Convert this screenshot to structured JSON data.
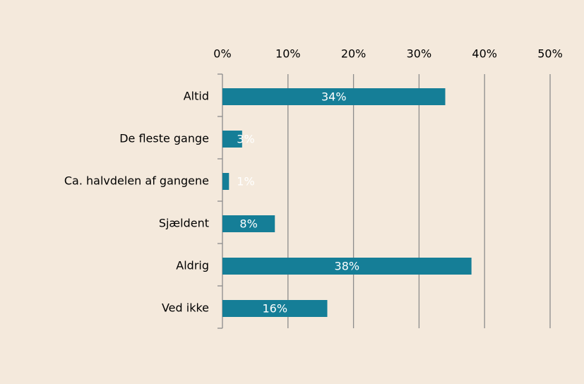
{
  "chart_data": {
    "type": "bar",
    "orientation": "horizontal",
    "categories": [
      "Altid",
      "De fleste gange",
      "Ca. halvdelen af gangene",
      "Sjældent",
      "Aldrig",
      "Ved ikke"
    ],
    "values": [
      34,
      3,
      1,
      8,
      38,
      16
    ],
    "value_labels": [
      "34%",
      "3%",
      "1%",
      "8%",
      "38%",
      "16%"
    ],
    "color": "#157e97",
    "xlim": [
      0,
      50
    ],
    "xticks": [
      {
        "value": 0,
        "label": "0%"
      },
      {
        "value": 10,
        "label": "10%"
      },
      {
        "value": 20,
        "label": "20%"
      },
      {
        "value": 30,
        "label": "30%"
      },
      {
        "value": 40,
        "label": "40%"
      },
      {
        "value": 50,
        "label": "50%"
      }
    ],
    "grid": true
  }
}
